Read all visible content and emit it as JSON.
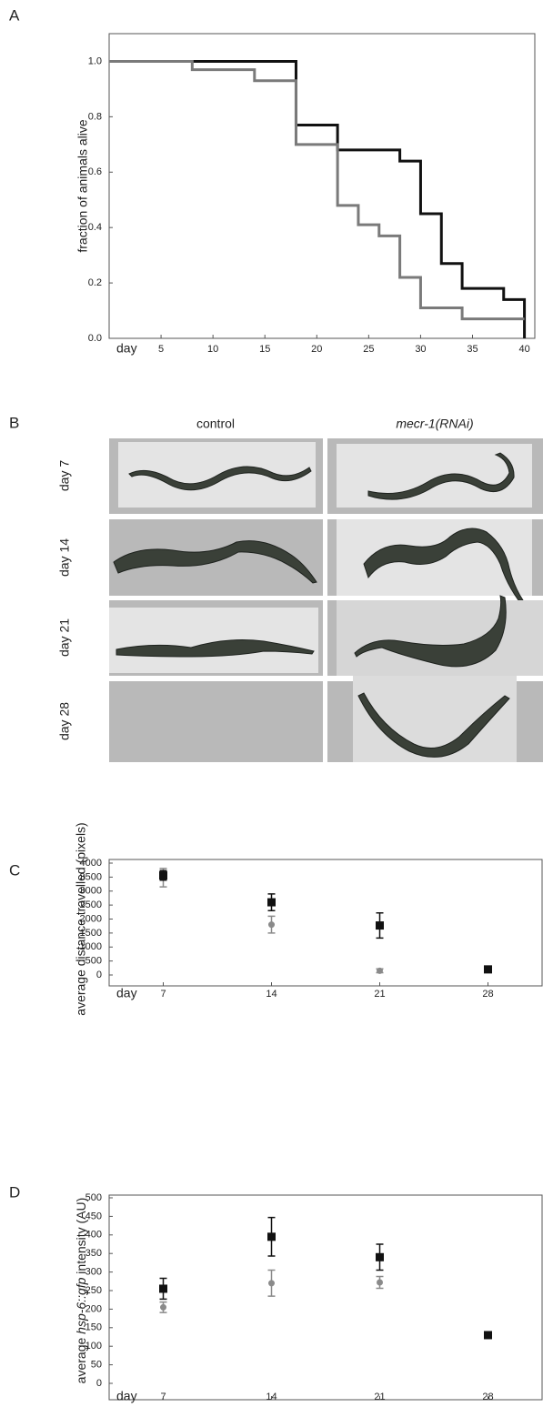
{
  "chart_data": [
    {
      "label": "A",
      "type": "step",
      "x_label": "day",
      "ylabel": "fraction of animals alive",
      "xlim": [
        0,
        41
      ],
      "ylim": [
        0,
        1.1
      ],
      "xticks": [
        5,
        10,
        15,
        20,
        25,
        30,
        35,
        40
      ],
      "yticks": [
        {
          "value": 0,
          "label": "0.0"
        },
        {
          "value": 0.2,
          "label": "0.2"
        },
        {
          "value": 0.4,
          "label": "0.4"
        },
        {
          "value": 0.6,
          "label": "0.6"
        },
        {
          "value": 0.8,
          "label": "0.8"
        },
        {
          "value": 1,
          "label": "1.0"
        }
      ],
      "series": [
        {
          "color": "#111111",
          "x": [
            0,
            18,
            22,
            28,
            30,
            32,
            34,
            38,
            40
          ],
          "values": [
            1,
            0.77,
            0.68,
            0.64,
            0.45,
            0.27,
            0.18,
            0.14,
            0
          ]
        },
        {
          "color": "#7a7a7a",
          "x": [
            0,
            8,
            14,
            18,
            22,
            24,
            26,
            28,
            30,
            34,
            40
          ],
          "values": [
            1,
            0.97,
            0.93,
            0.7,
            0.48,
            0.41,
            0.37,
            0.22,
            0.11,
            0.07,
            0.07
          ]
        }
      ]
    },
    {
      "label": "C",
      "type": "scatter",
      "x_label": "day",
      "ylabel": "average distance travelled (pixels)",
      "x": [
        7,
        14,
        21,
        28
      ],
      "xlim": [
        3.5,
        31.5
      ],
      "ylim": [
        0,
        4000
      ],
      "xticks": [
        7,
        14,
        21,
        28
      ],
      "yticks": [
        0,
        500,
        1000,
        1500,
        2000,
        2500,
        3000,
        3500,
        4000
      ],
      "series": [
        {
          "color": "#8a8a8a",
          "marker": "circle",
          "values": [
            3480,
            1800,
            150,
            null
          ],
          "errors": [
            330,
            300,
            70,
            null
          ]
        },
        {
          "color": "#111111",
          "marker": "square",
          "values": [
            3560,
            2600,
            1770,
            200
          ],
          "errors": [
            170,
            300,
            450,
            90
          ]
        }
      ]
    },
    {
      "label": "D",
      "type": "scatter",
      "x_label": "day",
      "ylabel": [
        "average ",
        "hsp-6::gfp",
        " intensity (AU)"
      ],
      "x": [
        7,
        14,
        21,
        28
      ],
      "xlim": [
        3.5,
        31.5
      ],
      "ylim": [
        0,
        500
      ],
      "xticks": [
        7,
        14,
        21,
        28
      ],
      "yticks": [
        0,
        50,
        100,
        150,
        200,
        250,
        300,
        350,
        400,
        450,
        500
      ],
      "series": [
        {
          "color": "#8a8a8a",
          "marker": "circle",
          "values": [
            205,
            270,
            272,
            null
          ],
          "errors": [
            14,
            35,
            16,
            null
          ]
        },
        {
          "color": "#111111",
          "marker": "square",
          "values": [
            255,
            395,
            340,
            130
          ],
          "errors": [
            28,
            52,
            35,
            5
          ]
        }
      ]
    }
  ],
  "figure_b": {
    "label": "B",
    "columns": [
      "control",
      "mecr-1(RNAi)"
    ],
    "rows": [
      "day 7",
      "day 14",
      "day 21",
      "day 28"
    ]
  }
}
